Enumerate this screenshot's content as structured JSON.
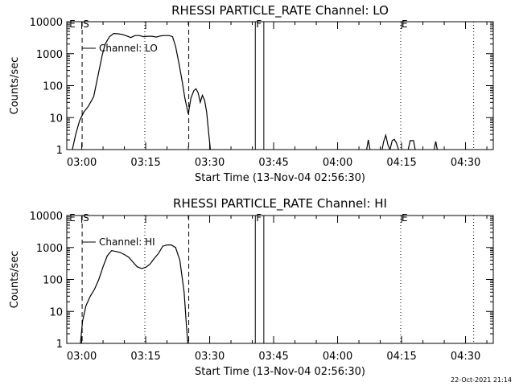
{
  "footer_timestamp": "22-Oct-2021 21:14",
  "chart_data": [
    {
      "type": "line",
      "title": "RHESSI PARTICLE_RATE Channel: LO",
      "xlabel": "Start Time (13-Nov-04 02:56:30)",
      "ylabel": "Counts/sec",
      "yscale": "log",
      "ylim": [
        1,
        10000
      ],
      "xlim_minutes": [
        176.5,
        276.5
      ],
      "xticks": [
        {
          "label": "03:00",
          "t": 180
        },
        {
          "label": "03:15",
          "t": 195
        },
        {
          "label": "03:30",
          "t": 210
        },
        {
          "label": "03:45",
          "t": 225
        },
        {
          "label": "04:00",
          "t": 240
        },
        {
          "label": "04:15",
          "t": 255
        },
        {
          "label": "04:30",
          "t": 270
        }
      ],
      "yticks": [
        {
          "label": "1",
          "v": 1
        },
        {
          "label": "10",
          "v": 10
        },
        {
          "label": "100",
          "v": 100
        },
        {
          "label": "1000",
          "v": 1000
        },
        {
          "label": "10000",
          "v": 10000
        }
      ],
      "legend": {
        "label": "Channel: LO",
        "position": "top-left"
      },
      "markers": [
        {
          "label": "E",
          "t": 176.9,
          "style": "none"
        },
        {
          "label": "S",
          "t": 180.1,
          "style": "dashed"
        },
        {
          "label": "",
          "t": 194.8,
          "style": "dotted"
        },
        {
          "label": "",
          "t": 205.1,
          "style": "dashed"
        },
        {
          "label": "F",
          "t": 220.7,
          "style": "solid"
        },
        {
          "label": "",
          "t": 222.7,
          "style": "solid"
        },
        {
          "label": "E",
          "t": 254.8,
          "style": "dotted"
        },
        {
          "label": "",
          "t": 271.9,
          "style": "dotted"
        }
      ],
      "series": [
        {
          "name": "Channel: LO",
          "segments": [
            [
              [
                176.3,
                0.7
              ],
              [
                177.8,
                1
              ],
              [
                178.6,
                3
              ],
              [
                179.5,
                8
              ],
              [
                180.5,
                15
              ],
              [
                181.5,
                22
              ],
              [
                182.8,
                45
              ],
              [
                183.8,
                200
              ],
              [
                184.8,
                900
              ],
              [
                185.5,
                2000
              ],
              [
                186.5,
                3400
              ],
              [
                187.5,
                4300
              ],
              [
                188.5,
                4200
              ],
              [
                189.5,
                4000
              ],
              [
                190.5,
                3600
              ],
              [
                191.5,
                3200
              ],
              [
                192.5,
                3700
              ],
              [
                193.5,
                3700
              ],
              [
                194.5,
                3400
              ],
              [
                195.5,
                3500
              ],
              [
                196.5,
                3500
              ],
              [
                197.5,
                3300
              ],
              [
                198.5,
                3600
              ],
              [
                199.5,
                3700
              ],
              [
                200.5,
                3700
              ],
              [
                201.3,
                3400
              ],
              [
                202,
                1700
              ],
              [
                202.8,
                500
              ],
              [
                203.5,
                150
              ],
              [
                204.2,
                40
              ],
              [
                205,
                13
              ],
              [
                205.6,
                40
              ],
              [
                206.3,
                70
              ],
              [
                206.8,
                80
              ],
              [
                207.3,
                60
              ],
              [
                207.8,
                30
              ],
              [
                208.3,
                50
              ],
              [
                208.8,
                35
              ],
              [
                209.3,
                15
              ],
              [
                209.8,
                3
              ],
              [
                210.3,
                0.7
              ]
            ],
            [
              [
                246.6,
                0.7
              ],
              [
                247.2,
                2
              ],
              [
                247.8,
                0.7
              ]
            ],
            [
              [
                250.2,
                0.7
              ],
              [
                250.8,
                1.8
              ],
              [
                251.3,
                2.8
              ],
              [
                251.8,
                1.4
              ],
              [
                252.3,
                1
              ],
              [
                252.8,
                1.9
              ],
              [
                253.3,
                2.1
              ],
              [
                253.8,
                1.6
              ],
              [
                254.3,
                1
              ],
              [
                254.7,
                0.7
              ]
            ],
            [
              [
                256.3,
                0.7
              ],
              [
                257,
                1.9
              ],
              [
                257.8,
                1.9
              ],
              [
                258.4,
                0.7
              ]
            ],
            [
              [
                262.4,
                0.7
              ],
              [
                263,
                1.8
              ],
              [
                263.6,
                0.7
              ]
            ]
          ]
        }
      ]
    },
    {
      "type": "line",
      "title": "RHESSI PARTICLE_RATE Channel: HI",
      "xlabel": "Start Time (13-Nov-04 02:56:30)",
      "ylabel": "Counts/sec",
      "yscale": "log",
      "ylim": [
        1,
        10000
      ],
      "xlim_minutes": [
        176.5,
        276.5
      ],
      "xticks": [
        {
          "label": "03:00",
          "t": 180
        },
        {
          "label": "03:15",
          "t": 195
        },
        {
          "label": "03:30",
          "t": 210
        },
        {
          "label": "03:45",
          "t": 225
        },
        {
          "label": "04:00",
          "t": 240
        },
        {
          "label": "04:15",
          "t": 255
        },
        {
          "label": "04:30",
          "t": 270
        }
      ],
      "yticks": [
        {
          "label": "1",
          "v": 1
        },
        {
          "label": "10",
          "v": 10
        },
        {
          "label": "100",
          "v": 100
        },
        {
          "label": "1000",
          "v": 1000
        },
        {
          "label": "10000",
          "v": 10000
        }
      ],
      "legend": {
        "label": "Channel: HI",
        "position": "top-left"
      },
      "markers": [
        {
          "label": "E",
          "t": 176.9,
          "style": "none"
        },
        {
          "label": "S",
          "t": 180.1,
          "style": "dashed"
        },
        {
          "label": "",
          "t": 194.8,
          "style": "dotted"
        },
        {
          "label": "",
          "t": 205.1,
          "style": "dashed"
        },
        {
          "label": "F",
          "t": 220.7,
          "style": "solid"
        },
        {
          "label": "",
          "t": 222.7,
          "style": "solid"
        },
        {
          "label": "E",
          "t": 254.8,
          "style": "dotted"
        },
        {
          "label": "",
          "t": 271.9,
          "style": "dotted"
        }
      ],
      "series": [
        {
          "name": "Channel: HI",
          "segments": [
            [
              [
                179.6,
                0.7
              ],
              [
                180.2,
                5
              ],
              [
                181,
                15
              ],
              [
                182,
                30
              ],
              [
                183,
                50
              ],
              [
                184,
                100
              ],
              [
                185,
                250
              ],
              [
                186,
                550
              ],
              [
                187,
                800
              ],
              [
                188,
                750
              ],
              [
                189,
                700
              ],
              [
                190,
                600
              ],
              [
                191,
                500
              ],
              [
                192,
                350
              ],
              [
                193,
                250
              ],
              [
                194,
                220
              ],
              [
                195,
                240
              ],
              [
                196,
                300
              ],
              [
                197,
                450
              ],
              [
                198,
                650
              ],
              [
                199,
                1100
              ],
              [
                200,
                1200
              ],
              [
                201,
                1200
              ],
              [
                202,
                1000
              ],
              [
                203,
                400
              ],
              [
                204,
                40
              ],
              [
                204.6,
                3
              ],
              [
                205,
                0.7
              ]
            ]
          ]
        }
      ]
    }
  ]
}
